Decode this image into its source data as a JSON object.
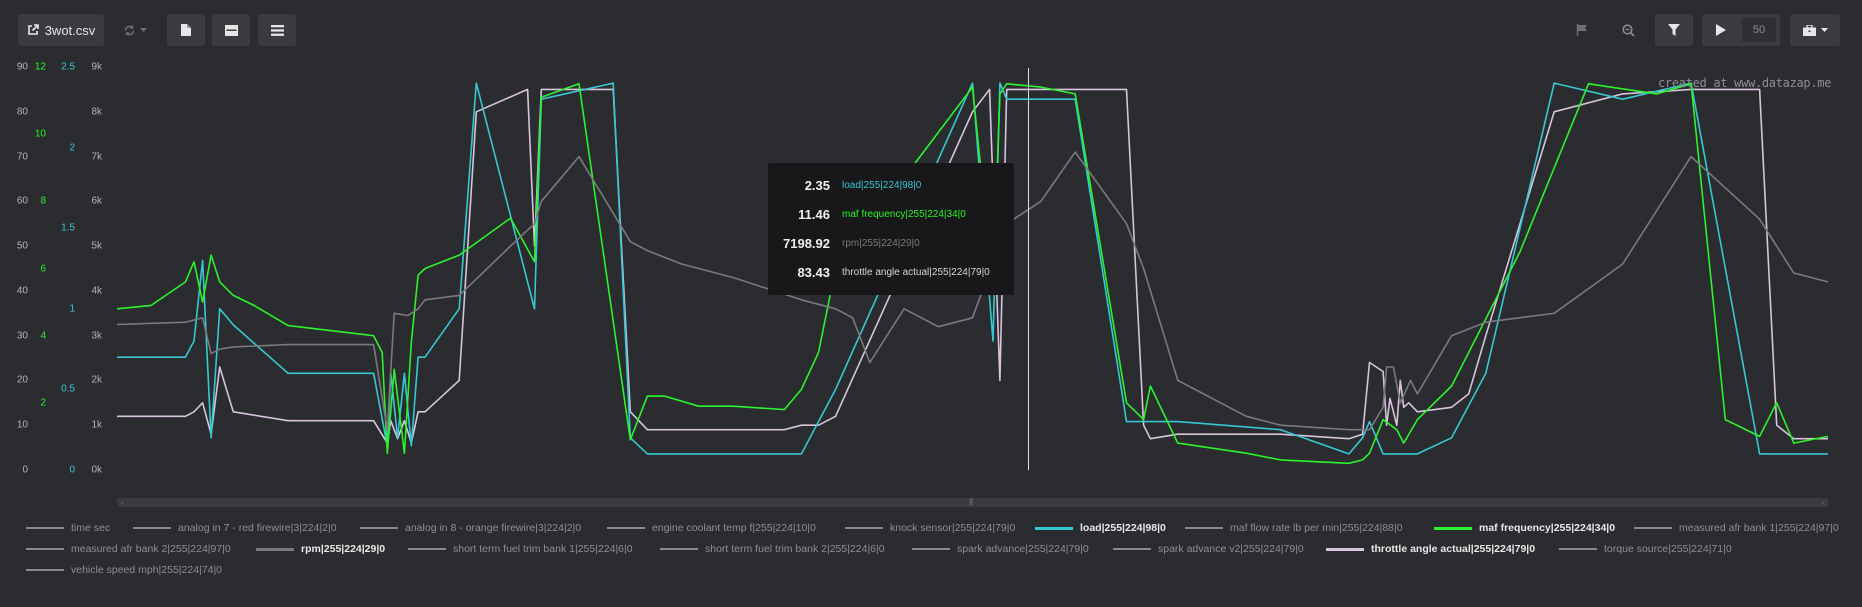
{
  "toolbar": {
    "file_name": "3wot.csv",
    "play_count": "50",
    "icons": [
      "external-link-icon",
      "refresh-icon",
      "file-icon",
      "layout-icon",
      "list-icon",
      "flag-icon",
      "zoom-out-icon",
      "filter-icon",
      "play-icon",
      "briefcase-icon"
    ]
  },
  "watermark": "created at www.datazap.me",
  "tooltip": [
    {
      "value": "2.35",
      "label": "load|255|224|98|0",
      "color": "#35c8d2"
    },
    {
      "value": "11.46",
      "label": "maf frequency|255|224|34|0",
      "color": "#2cf22c"
    },
    {
      "value": "7198.92",
      "label": "rpm|255|224|29|0",
      "color": "#7a7a7d"
    },
    {
      "value": "83.43",
      "label": "throttle angle actual|255|224|79|0",
      "color": "#d7d7d7"
    }
  ],
  "axes": {
    "throttle": {
      "ticks": [
        "90",
        "80",
        "70",
        "60",
        "50",
        "40",
        "30",
        "20",
        "10",
        "0"
      ],
      "color": "#b4b4b4"
    },
    "maf": {
      "ticks": [
        "12",
        "10",
        "8",
        "6",
        "4",
        "2"
      ],
      "color": "#2cf22c"
    },
    "load": {
      "ticks": [
        "2.5",
        "2",
        "1.5",
        "1",
        "0.5",
        "0"
      ],
      "color": "#35c8d2"
    },
    "rpm": {
      "ticks": [
        "9k",
        "8k",
        "7k",
        "6k",
        "5k",
        "4k",
        "3k",
        "2k",
        "1k",
        "0k"
      ],
      "color": "#b4b4b4"
    }
  },
  "legend": [
    {
      "label": "time sec",
      "color": "#8a8a8a",
      "active": false
    },
    {
      "label": "analog in 7 - red firewire|3|224|2|0",
      "color": "#8a8a8a",
      "active": false
    },
    {
      "label": "analog in 8 - orange firewire|3|224|2|0",
      "color": "#8a8a8a",
      "active": false
    },
    {
      "label": "engine coolant temp f|255|224|10|0",
      "color": "#8a8a8a",
      "active": false
    },
    {
      "label": "knock sensor|255|224|79|0",
      "color": "#8a8a8a",
      "active": false
    },
    {
      "label": "load|255|224|98|0",
      "color": "#35c8d2",
      "active": true
    },
    {
      "label": "maf flow rate lb per min|255|224|88|0",
      "color": "#8a8a8a",
      "active": false
    },
    {
      "label": "maf frequency|255|224|34|0",
      "color": "#2cf22c",
      "active": true
    },
    {
      "label": "measured afr bank 1|255|224|97|0",
      "color": "#8a8a8a",
      "active": false
    },
    {
      "label": "measured afr bank 2|255|224|97|0",
      "color": "#8a8a8a",
      "active": false
    },
    {
      "label": "rpm|255|224|29|0",
      "color": "#7a7a7d",
      "active": true
    },
    {
      "label": "short term fuel trim bank 1|255|224|6|0",
      "color": "#8a8a8a",
      "active": false
    },
    {
      "label": "short term fuel trim bank 2|255|224|6|0",
      "color": "#8a8a8a",
      "active": false
    },
    {
      "label": "spark advance|255|224|79|0",
      "color": "#8a8a8a",
      "active": false
    },
    {
      "label": "spark advance v2|255|224|79|0",
      "color": "#8a8a8a",
      "active": false
    },
    {
      "label": "throttle angle actual|255|224|79|0",
      "color": "#d8c4dc",
      "active": true
    },
    {
      "label": "torque source|255|224|71|0",
      "color": "#8a8a8a",
      "active": false
    },
    {
      "label": "vehicle speed mph|255|224|74|0",
      "color": "#8a8a8a",
      "active": false
    }
  ],
  "chart_data": {
    "type": "line",
    "x_range": [
      0,
      1000
    ],
    "series": [
      {
        "name": "throttle angle actual|255|224|79|0",
        "color": "#d8c4dc",
        "axis": "throttle",
        "x": [
          0,
          40,
          45,
          50,
          55,
          60,
          68,
          100,
          150,
          158,
          160,
          164,
          168,
          172,
          176,
          180,
          200,
          210,
          240,
          244,
          248,
          290,
          300,
          310,
          320,
          390,
          400,
          410,
          420,
          500,
          510,
          516,
          520,
          540,
          560,
          590,
          600,
          604,
          620,
          680,
          720,
          728,
          732,
          740,
          742,
          744,
          748,
          750,
          752,
          755,
          760,
          780,
          790,
          800,
          840,
          880,
          920,
          960,
          970,
          980,
          1000
        ],
        "y": [
          12,
          12,
          13,
          15,
          8,
          23,
          13,
          11,
          11,
          6,
          11,
          7,
          11,
          6,
          13,
          13,
          20,
          80,
          85,
          50,
          85,
          85,
          13,
          9,
          9,
          9,
          10,
          10,
          12,
          80,
          85,
          20,
          85,
          85,
          85,
          85,
          10,
          7,
          8,
          8,
          7,
          8,
          24,
          22,
          10,
          16,
          10,
          20,
          14,
          15,
          13,
          14,
          17,
          30,
          80,
          84,
          85,
          85,
          10,
          7,
          7
        ]
      },
      {
        "name": "load|255|224|98|0",
        "color": "#35c8d2",
        "axis": "load",
        "x": [
          0,
          40,
          45,
          50,
          55,
          60,
          68,
          100,
          150,
          158,
          160,
          164,
          168,
          172,
          176,
          180,
          200,
          210,
          244,
          248,
          290,
          300,
          310,
          320,
          390,
          400,
          410,
          420,
          500,
          512,
          516,
          520,
          560,
          590,
          600,
          604,
          620,
          680,
          720,
          728,
          732,
          740,
          742,
          744,
          748,
          750,
          752,
          755,
          760,
          780,
          790,
          800,
          840,
          880,
          920,
          960,
          970,
          980,
          1000
        ],
        "y": [
          0.7,
          0.7,
          0.8,
          1.3,
          0.2,
          1.0,
          0.9,
          0.6,
          0.6,
          0.15,
          0.6,
          0.2,
          0.6,
          0.15,
          0.7,
          0.7,
          1.0,
          2.4,
          1.0,
          2.3,
          2.4,
          0.2,
          0.1,
          0.1,
          0.1,
          0.1,
          0.3,
          0.5,
          2.4,
          0.8,
          2.4,
          2.3,
          2.3,
          0.3,
          0.3,
          0.3,
          0.3,
          0.25,
          0.1,
          0.2,
          0.3,
          0.1,
          0.1,
          0.1,
          0.1,
          0.1,
          0.1,
          0.1,
          0.1,
          0.2,
          0.4,
          0.6,
          2.4,
          2.3,
          2.4,
          0.1,
          0.1,
          0.1,
          0.1
        ]
      },
      {
        "name": "maf frequency|255|224|34|0",
        "color": "#2cf22c",
        "axis": "maf",
        "x": [
          0,
          20,
          40,
          45,
          50,
          55,
          60,
          68,
          80,
          100,
          150,
          155,
          158,
          162,
          168,
          172,
          176,
          180,
          200,
          230,
          244,
          248,
          270,
          300,
          310,
          320,
          340,
          360,
          390,
          400,
          410,
          420,
          500,
          512,
          516,
          520,
          540,
          560,
          590,
          600,
          604,
          620,
          660,
          680,
          720,
          728,
          732,
          740,
          748,
          752,
          760,
          780,
          800,
          820,
          860,
          900,
          920,
          940,
          960,
          970,
          980,
          1000
        ],
        "y": [
          4.8,
          4.9,
          5.6,
          6.2,
          5.0,
          6.4,
          5.6,
          5.2,
          4.9,
          4.3,
          4.0,
          3.5,
          0.5,
          3.0,
          0.5,
          3.8,
          5.8,
          6.0,
          6.4,
          7.5,
          6.2,
          11.1,
          11.5,
          0.9,
          2.2,
          2.2,
          1.9,
          1.9,
          1.8,
          2.4,
          3.5,
          6.0,
          11.4,
          5.4,
          11.2,
          11.5,
          11.4,
          11.2,
          2.0,
          1.5,
          2.5,
          0.8,
          0.5,
          0.3,
          0.2,
          0.3,
          0.5,
          1.5,
          1.2,
          0.8,
          1.5,
          2.5,
          4.5,
          6.5,
          11.5,
          11.2,
          11.5,
          1.5,
          1.0,
          2.0,
          0.8,
          1.0
        ]
      },
      {
        "name": "rpm|255|224|29|0",
        "color": "#7a7a7d",
        "axis": "rpm",
        "x": [
          0,
          40,
          45,
          50,
          55,
          60,
          68,
          100,
          150,
          158,
          162,
          170,
          176,
          180,
          200,
          230,
          244,
          248,
          270,
          300,
          310,
          330,
          360,
          400,
          420,
          430,
          440,
          460,
          480,
          500,
          520,
          540,
          560,
          590,
          600,
          620,
          660,
          680,
          720,
          728,
          732,
          740,
          742,
          746,
          750,
          756,
          760,
          780,
          800,
          840,
          880,
          920,
          960,
          980,
          1000
        ],
        "y": [
          3.25,
          3.3,
          3.35,
          3.4,
          2.6,
          2.7,
          2.75,
          2.8,
          2.8,
          0.9,
          3.5,
          3.45,
          3.6,
          3.8,
          3.9,
          5.0,
          5.5,
          6.0,
          7.0,
          5.1,
          4.9,
          4.6,
          4.3,
          3.8,
          3.6,
          3.4,
          2.4,
          3.6,
          3.2,
          3.4,
          5.5,
          6.0,
          7.1,
          5.5,
          4.5,
          2.0,
          1.2,
          1.0,
          0.9,
          0.9,
          0.9,
          1.4,
          2.3,
          2.3,
          1.5,
          2.0,
          1.7,
          3.0,
          3.3,
          3.5,
          4.6,
          7.0,
          5.6,
          4.4,
          4.2
        ]
      }
    ]
  }
}
